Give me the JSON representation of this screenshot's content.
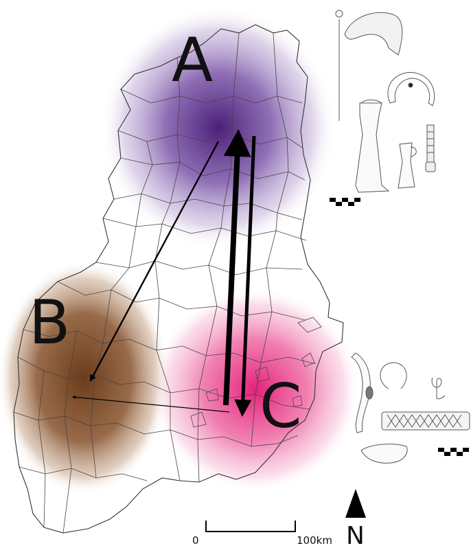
{
  "map": {
    "regions": [
      {
        "key": "a",
        "label": "A",
        "color": "#5a2a86"
      },
      {
        "key": "b",
        "label": "B",
        "color": "#7a4a24"
      },
      {
        "key": "c",
        "label": "C",
        "color": "#e8458c"
      }
    ],
    "scale_bar": {
      "start_label": "0",
      "end_label": "100km"
    },
    "north_arrow": {
      "label": "N"
    },
    "artifact_scale_icons": [
      "checker-scale-icon",
      "checker-scale-icon"
    ],
    "artifact_icons": [
      "pin-icon",
      "sickle-icon",
      "torc-icon",
      "axe-icon",
      "chisel-icon",
      "coiled-pin-icon",
      "brooch-icon",
      "ring-icon",
      "spiral-icon",
      "decorated-band-icon",
      "blade-icon"
    ]
  }
}
